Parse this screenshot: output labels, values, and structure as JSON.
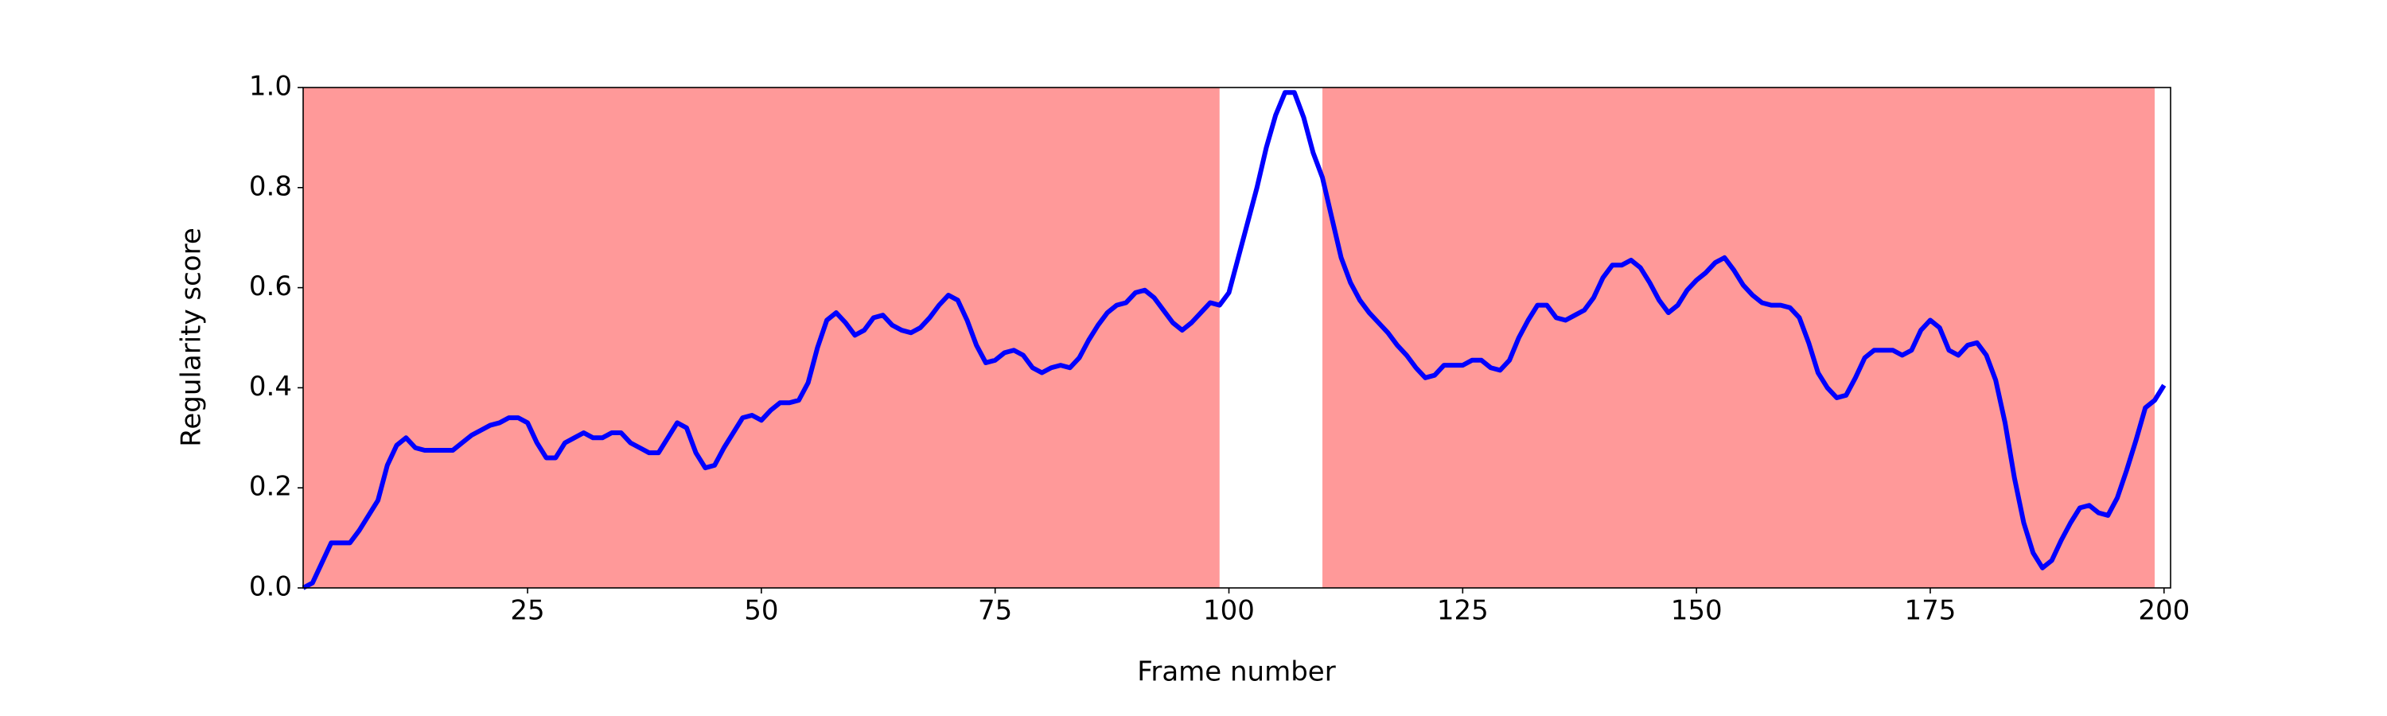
{
  "chart_data": {
    "type": "line",
    "xlabel": "Frame number",
    "ylabel": "Regularity score",
    "x": [
      1,
      2,
      3,
      4,
      5,
      6,
      7,
      8,
      9,
      10,
      11,
      12,
      13,
      14,
      15,
      16,
      17,
      18,
      19,
      20,
      21,
      22,
      23,
      24,
      25,
      26,
      27,
      28,
      29,
      30,
      31,
      32,
      33,
      34,
      35,
      36,
      37,
      38,
      39,
      40,
      41,
      42,
      43,
      44,
      45,
      46,
      47,
      48,
      49,
      50,
      51,
      52,
      53,
      54,
      55,
      56,
      57,
      58,
      59,
      60,
      61,
      62,
      63,
      64,
      65,
      66,
      67,
      68,
      69,
      70,
      71,
      72,
      73,
      74,
      75,
      76,
      77,
      78,
      79,
      80,
      81,
      82,
      83,
      84,
      85,
      86,
      87,
      88,
      89,
      90,
      91,
      92,
      93,
      94,
      95,
      96,
      97,
      98,
      99,
      100,
      101,
      102,
      103,
      104,
      105,
      106,
      107,
      108,
      109,
      110,
      111,
      112,
      113,
      114,
      115,
      116,
      117,
      118,
      119,
      120,
      121,
      122,
      123,
      124,
      125,
      126,
      127,
      128,
      129,
      130,
      131,
      132,
      133,
      134,
      135,
      136,
      137,
      138,
      139,
      140,
      141,
      142,
      143,
      144,
      145,
      146,
      147,
      148,
      149,
      150,
      151,
      152,
      153,
      154,
      155,
      156,
      157,
      158,
      159,
      160,
      161,
      162,
      163,
      164,
      165,
      166,
      167,
      168,
      169,
      170,
      171,
      172,
      173,
      174,
      175,
      176,
      177,
      178,
      179,
      180,
      181,
      182,
      183,
      184,
      185,
      186,
      187,
      188,
      189,
      190,
      191,
      192,
      193,
      194,
      195,
      196,
      197,
      198,
      199,
      200
    ],
    "series": [
      {
        "color": "#0000ff",
        "values": [
          0,
          0.01,
          0.05,
          0.09,
          0.09,
          0.09,
          0.115,
          0.145,
          0.175,
          0.245,
          0.285,
          0.3,
          0.28,
          0.275,
          0.275,
          0.275,
          0.275,
          0.29,
          0.305,
          0.315,
          0.325,
          0.33,
          0.34,
          0.34,
          0.33,
          0.29,
          0.26,
          0.26,
          0.29,
          0.3,
          0.31,
          0.3,
          0.3,
          0.31,
          0.31,
          0.29,
          0.28,
          0.27,
          0.27,
          0.3,
          0.33,
          0.32,
          0.27,
          0.24,
          0.245,
          0.28,
          0.31,
          0.34,
          0.345,
          0.335,
          0.355,
          0.37,
          0.37,
          0.375,
          0.41,
          0.48,
          0.535,
          0.55,
          0.53,
          0.505,
          0.515,
          0.54,
          0.545,
          0.525,
          0.515,
          0.51,
          0.52,
          0.54,
          0.565,
          0.585,
          0.575,
          0.535,
          0.485,
          0.45,
          0.455,
          0.47,
          0.475,
          0.465,
          0.44,
          0.43,
          0.44,
          0.445,
          0.44,
          0.46,
          0.495,
          0.525,
          0.55,
          0.565,
          0.57,
          0.59,
          0.595,
          0.58,
          0.555,
          0.53,
          0.515,
          0.53,
          0.55,
          0.57,
          0.565,
          0.59,
          0.66,
          0.73,
          0.8,
          0.88,
          0.945,
          0.99,
          0.99,
          0.94,
          0.87,
          0.82,
          0.74,
          0.66,
          0.61,
          0.575,
          0.55,
          0.53,
          0.51,
          0.485,
          0.465,
          0.44,
          0.42,
          0.425,
          0.445,
          0.445,
          0.445,
          0.455,
          0.455,
          0.44,
          0.435,
          0.455,
          0.5,
          0.535,
          0.565,
          0.565,
          0.54,
          0.535,
          0.545,
          0.555,
          0.58,
          0.62,
          0.645,
          0.645,
          0.655,
          0.64,
          0.61,
          0.575,
          0.55,
          0.565,
          0.595,
          0.615,
          0.63,
          0.65,
          0.66,
          0.635,
          0.605,
          0.585,
          0.57,
          0.565,
          0.565,
          0.56,
          0.54,
          0.49,
          0.43,
          0.4,
          0.38,
          0.385,
          0.42,
          0.46,
          0.475,
          0.475,
          0.475,
          0.465,
          0.475,
          0.515,
          0.535,
          0.52,
          0.475,
          0.465,
          0.485,
          0.49,
          0.465,
          0.415,
          0.33,
          0.22,
          0.13,
          0.07,
          0.04,
          0.055,
          0.095,
          0.13,
          0.16,
          0.165,
          0.15,
          0.145,
          0.18,
          0.235,
          0.295,
          0.36,
          0.375,
          0.405
        ]
      }
    ],
    "shaded_spans": [
      [
        1,
        99
      ],
      [
        110,
        199
      ]
    ],
    "shade_color": "#ff9999",
    "xlim": [
      1,
      200.7
    ],
    "xticks": [
      25,
      50,
      75,
      100,
      125,
      150,
      175,
      200
    ],
    "ylim": [
      0,
      1
    ],
    "yticks": [
      {
        "value": 0,
        "label": "0.0"
      },
      0.2,
      0.4,
      0.6,
      0.8,
      {
        "value": 1,
        "label": "1.0"
      }
    ]
  }
}
